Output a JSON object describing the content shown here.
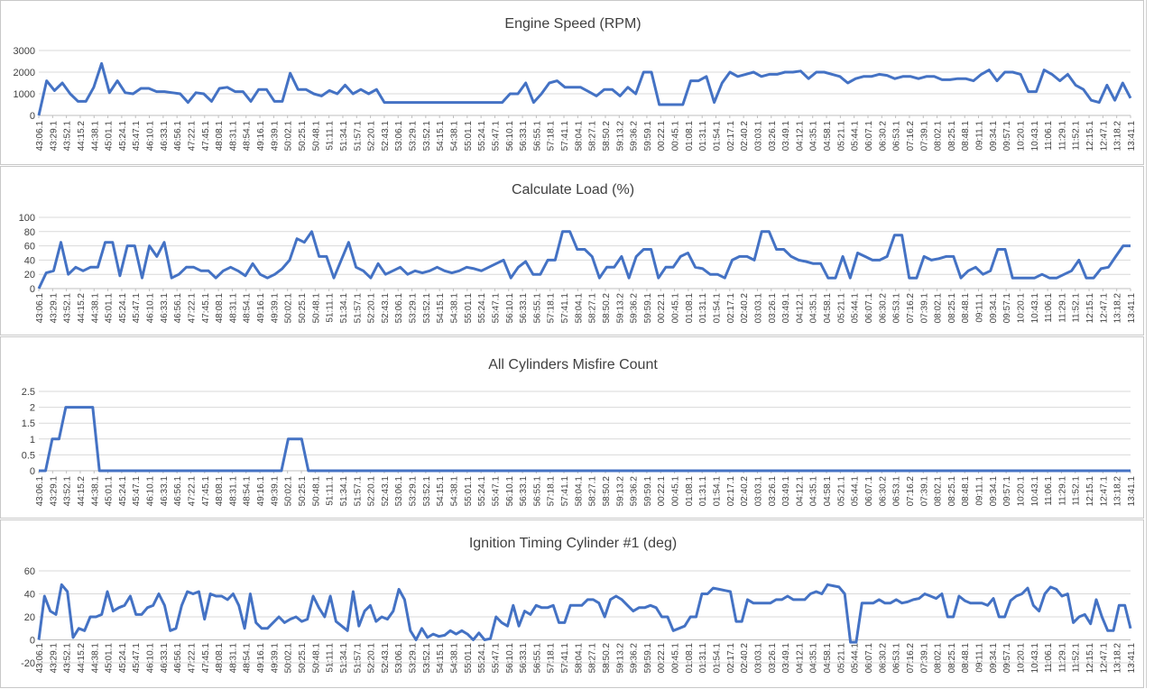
{
  "chart_data": [
    {
      "type": "line",
      "title": "Engine Speed (RPM)",
      "ylim": [
        0,
        3000
      ],
      "yticks": [
        "0",
        "1000",
        "2000",
        "3000"
      ],
      "grid": true,
      "color": "#4472c4",
      "x_labels": [
        "43:06.1",
        "43:29.1",
        "43:52.1",
        "44:15.2",
        "44:38.1",
        "45:01.1",
        "45:24.1",
        "45:47.1",
        "46:10.1",
        "46:33.1",
        "46:56.1",
        "47:22.1",
        "47:45.1",
        "48:08.1",
        "48:31.1",
        "48:54.1",
        "49:16.1",
        "49:39.1",
        "50:02.1",
        "50:25.1",
        "50:48.1",
        "51:11.1",
        "51:34.1",
        "51:57.1",
        "52:20.1",
        "52:43.1",
        "53:06.1",
        "53:29.1",
        "53:52.1",
        "54:15.1",
        "54:38.1",
        "55:01.1",
        "55:24.1",
        "55:47.1",
        "56:10.1",
        "56:33.1",
        "56:55.1",
        "57:18.1",
        "57:41.1",
        "58:04.1",
        "58:27.1",
        "58:50.2",
        "59:13.2",
        "59:36.2",
        "59:59.1",
        "00:22.1",
        "00:45.1",
        "01:08.1",
        "01:31.1",
        "01:54.1",
        "02:17.1",
        "02:40.2",
        "03:03.1",
        "03:26.1",
        "03:49.1",
        "04:12.1",
        "04:35.1",
        "04:58.1",
        "05:21.1",
        "05:44.1",
        "06:07.1",
        "06:30.2",
        "06:53.1",
        "07:16.2",
        "07:39.1",
        "08:02.1",
        "08:25.1",
        "08:48.1",
        "09:11.1",
        "09:34.1",
        "09:57.1",
        "10:20.1",
        "10:43.1",
        "11:06.1",
        "11:29.1",
        "11:52.1",
        "12:15.1",
        "12:47.1",
        "13:18.2",
        "13:41.1"
      ],
      "values": [
        0,
        1600,
        1150,
        1500,
        1000,
        650,
        650,
        1300,
        2400,
        1050,
        1600,
        1050,
        1000,
        1250,
        1250,
        1100,
        1100,
        1050,
        1000,
        600,
        1050,
        1000,
        650,
        1250,
        1300,
        1100,
        1100,
        650,
        1200,
        1200,
        650,
        650,
        1950,
        1200,
        1200,
        1000,
        900,
        1150,
        1000,
        1400,
        1000,
        1200,
        1000,
        1200,
        600,
        600,
        600,
        600,
        600,
        600,
        600,
        600,
        600,
        600,
        600,
        600,
        600,
        600,
        600,
        600,
        1000,
        1000,
        1500,
        600,
        1000,
        1500,
        1600,
        1300,
        1300,
        1300,
        1100,
        900,
        1200,
        1200,
        900,
        1300,
        1000,
        2000,
        2000,
        500,
        500,
        500,
        500,
        1600,
        1600,
        1800,
        600,
        1500,
        2000,
        1800,
        1900,
        2000,
        1800,
        1900,
        1900,
        2000,
        2000,
        2050,
        1700,
        2000,
        2000,
        1900,
        1800,
        1500,
        1700,
        1800,
        1800,
        1900,
        1850,
        1700,
        1800,
        1800,
        1700,
        1800,
        1800,
        1650,
        1650,
        1700,
        1700,
        1600,
        1900,
        2100,
        1600,
        2000,
        2000,
        1900,
        1100,
        1100,
        2100,
        1900,
        1600,
        1900,
        1400,
        1200,
        700,
        600,
        1400,
        700,
        1500,
        800
      ]
    },
    {
      "type": "line",
      "title": "Calculate Load (%)",
      "ylim": [
        0,
        100
      ],
      "yticks": [
        "0",
        "20",
        "40",
        "60",
        "80",
        "100"
      ],
      "grid": true,
      "color": "#4472c4",
      "x_labels": [
        "43:06.1",
        "43:29.1",
        "43:52.1",
        "44:15.2",
        "44:38.1",
        "45:01.1",
        "45:24.1",
        "45:47.1",
        "46:10.1",
        "46:33.1",
        "46:56.1",
        "47:22.1",
        "47:45.1",
        "48:08.1",
        "48:31.1",
        "48:54.1",
        "49:16.1",
        "49:39.1",
        "50:02.1",
        "50:25.1",
        "50:48.1",
        "51:11.1",
        "51:34.1",
        "51:57.1",
        "52:20.1",
        "52:43.1",
        "53:06.1",
        "53:29.1",
        "53:52.1",
        "54:15.1",
        "54:38.1",
        "55:01.1",
        "55:24.1",
        "55:47.1",
        "56:10.1",
        "56:33.1",
        "56:55.1",
        "57:18.1",
        "57:41.1",
        "58:04.1",
        "58:27.1",
        "58:50.2",
        "59:13.2",
        "59:36.2",
        "59:59.1",
        "00:22.1",
        "00:45.1",
        "01:08.1",
        "01:31.1",
        "01:54.1",
        "02:17.1",
        "02:40.2",
        "03:03.1",
        "03:26.1",
        "03:49.1",
        "04:12.1",
        "04:35.1",
        "04:58.1",
        "05:21.1",
        "05:44.1",
        "06:07.1",
        "06:30.2",
        "06:53.1",
        "07:16.2",
        "07:39.1",
        "08:02.1",
        "08:25.1",
        "08:48.1",
        "09:11.1",
        "09:34.1",
        "09:57.1",
        "10:20.1",
        "10:43.1",
        "11:06.1",
        "11:29.1",
        "11:52.1",
        "12:15.1",
        "12:47.1",
        "13:18.2",
        "13:41.1"
      ],
      "values": [
        0,
        22,
        25,
        65,
        20,
        30,
        25,
        30,
        30,
        65,
        65,
        18,
        60,
        60,
        15,
        60,
        45,
        65,
        15,
        20,
        30,
        30,
        25,
        25,
        15,
        25,
        30,
        25,
        18,
        35,
        20,
        15,
        20,
        28,
        40,
        70,
        65,
        80,
        45,
        45,
        15,
        40,
        65,
        30,
        25,
        15,
        35,
        20,
        25,
        30,
        20,
        25,
        22,
        25,
        30,
        25,
        22,
        25,
        30,
        28,
        25,
        30,
        35,
        40,
        15,
        30,
        38,
        20,
        20,
        40,
        40,
        80,
        80,
        55,
        55,
        45,
        15,
        30,
        30,
        45,
        15,
        45,
        55,
        55,
        15,
        30,
        30,
        45,
        50,
        30,
        28,
        20,
        20,
        15,
        40,
        45,
        45,
        40,
        80,
        80,
        55,
        55,
        45,
        40,
        38,
        35,
        35,
        15,
        15,
        45,
        15,
        50,
        45,
        40,
        40,
        45,
        75,
        75,
        15,
        15,
        45,
        40,
        42,
        45,
        45,
        15,
        25,
        30,
        20,
        25,
        55,
        55,
        15,
        15,
        15,
        15,
        20,
        15,
        15,
        20,
        25,
        40,
        15,
        15,
        28,
        30,
        45,
        60,
        60
      ]
    },
    {
      "type": "line",
      "title": "All Cylinders Misfire Count",
      "ylim": [
        0,
        2.5
      ],
      "yticks": [
        "0",
        "0.5",
        "1",
        "1.5",
        "2",
        "2.5"
      ],
      "grid": true,
      "color": "#4472c4",
      "x_labels": [
        "43:06.1",
        "43:29.1",
        "43:52.1",
        "44:15.2",
        "44:38.1",
        "45:01.1",
        "45:24.1",
        "45:47.1",
        "46:10.1",
        "46:33.1",
        "46:56.1",
        "47:22.1",
        "47:45.1",
        "48:08.1",
        "48:31.1",
        "48:54.1",
        "49:16.1",
        "49:39.1",
        "50:02.1",
        "50:25.1",
        "50:48.1",
        "51:11.1",
        "51:34.1",
        "51:57.1",
        "52:20.1",
        "52:43.1",
        "53:06.1",
        "53:29.1",
        "53:52.1",
        "54:15.1",
        "54:38.1",
        "55:01.1",
        "55:24.1",
        "55:47.1",
        "56:10.1",
        "56:33.1",
        "56:55.1",
        "57:18.1",
        "57:41.1",
        "58:04.1",
        "58:27.1",
        "58:50.2",
        "59:13.2",
        "59:36.2",
        "59:59.1",
        "00:22.1",
        "00:45.1",
        "01:08.1",
        "01:31.1",
        "01:54.1",
        "02:17.1",
        "02:40.2",
        "03:03.1",
        "03:26.1",
        "03:49.1",
        "04:12.1",
        "04:35.1",
        "04:58.1",
        "05:21.1",
        "05:44.1",
        "06:07.1",
        "06:30.2",
        "06:53.1",
        "07:16.2",
        "07:39.1",
        "08:02.1",
        "08:25.1",
        "08:48.1",
        "09:11.1",
        "09:34.1",
        "09:57.1",
        "10:20.1",
        "10:43.1",
        "11:06.1",
        "11:29.1",
        "11:52.1",
        "12:15.1",
        "12:47.1",
        "13:18.2",
        "13:41.1"
      ],
      "values": [
        0,
        0,
        1,
        1,
        2,
        2,
        2,
        2,
        2,
        0,
        0,
        0,
        0,
        0,
        0,
        0,
        0,
        0,
        0,
        0,
        0,
        0,
        0,
        0,
        0,
        0,
        0,
        0,
        0,
        0,
        0,
        0,
        0,
        0,
        0,
        0,
        0,
        1,
        1,
        1,
        0,
        0,
        0,
        0,
        0,
        0,
        0,
        0,
        0,
        0,
        0,
        0,
        0,
        0,
        0,
        0,
        0,
        0,
        0,
        0,
        0,
        0,
        0,
        0,
        0,
        0,
        0,
        0,
        0,
        0,
        0,
        0,
        0,
        0,
        0,
        0,
        0,
        0,
        0,
        0,
        0,
        0,
        0,
        0,
        0,
        0,
        0,
        0,
        0,
        0,
        0,
        0,
        0,
        0,
        0,
        0,
        0,
        0,
        0,
        0,
        0,
        0,
        0,
        0,
        0,
        0,
        0,
        0,
        0,
        0,
        0,
        0,
        0,
        0,
        0,
        0,
        0,
        0,
        0,
        0,
        0,
        0,
        0,
        0,
        0,
        0,
        0,
        0,
        0,
        0,
        0,
        0,
        0,
        0,
        0,
        0,
        0,
        0,
        0,
        0,
        0,
        0,
        0,
        0,
        0,
        0,
        0,
        0,
        0,
        0,
        0,
        0,
        0,
        0,
        0,
        0,
        0,
        0,
        0,
        0,
        0,
        0,
        0
      ]
    },
    {
      "type": "line",
      "title": "Ignition Timing Cylinder #1 (deg)",
      "ylim": [
        -20,
        60
      ],
      "yticks": [
        "-20",
        "0",
        "20",
        "40",
        "60"
      ],
      "grid": true,
      "color": "#4472c4",
      "x_labels": [
        "43:06.1",
        "43:29.1",
        "43:52.1",
        "44:15.2",
        "44:38.1",
        "45:01.1",
        "45:24.1",
        "45:47.1",
        "46:10.1",
        "46:33.1",
        "46:56.1",
        "47:22.1",
        "47:45.1",
        "48:08.1",
        "48:31.1",
        "48:54.1",
        "49:16.1",
        "49:39.1",
        "50:02.1",
        "50:25.1",
        "50:48.1",
        "51:11.1",
        "51:34.1",
        "51:57.1",
        "52:20.1",
        "52:43.1",
        "53:06.1",
        "53:29.1",
        "53:52.1",
        "54:15.1",
        "54:38.1",
        "55:01.1",
        "55:24.1",
        "55:47.1",
        "56:10.1",
        "56:33.1",
        "56:55.1",
        "57:18.1",
        "57:41.1",
        "58:04.1",
        "58:27.1",
        "58:50.2",
        "59:13.2",
        "59:36.2",
        "59:59.1",
        "00:22.1",
        "00:45.1",
        "01:08.1",
        "01:31.1",
        "01:54.1",
        "02:17.1",
        "02:40.2",
        "03:03.1",
        "03:26.1",
        "03:49.1",
        "04:12.1",
        "04:35.1",
        "04:58.1",
        "05:21.1",
        "05:44.1",
        "06:07.1",
        "06:30.2",
        "06:53.1",
        "07:16.2",
        "07:39.1",
        "08:02.1",
        "08:25.1",
        "08:48.1",
        "09:11.1",
        "09:34.1",
        "09:57.1",
        "10:20.1",
        "10:43.1",
        "11:06.1",
        "11:29.1",
        "11:52.1",
        "12:15.1",
        "12:47.1",
        "13:18.2",
        "13:41.1"
      ],
      "values": [
        0,
        38,
        25,
        22,
        48,
        42,
        2,
        10,
        8,
        20,
        20,
        22,
        42,
        25,
        28,
        30,
        38,
        22,
        22,
        28,
        30,
        40,
        30,
        8,
        10,
        30,
        42,
        40,
        42,
        18,
        40,
        38,
        38,
        35,
        40,
        30,
        10,
        40,
        15,
        10,
        10,
        15,
        20,
        15,
        18,
        20,
        16,
        18,
        38,
        28,
        20,
        38,
        16,
        12,
        8,
        42,
        12,
        25,
        30,
        16,
        20,
        18,
        25,
        44,
        35,
        8,
        0,
        10,
        2,
        5,
        3,
        4,
        8,
        5,
        8,
        5,
        0,
        6,
        0,
        1,
        20,
        15,
        12,
        30,
        12,
        25,
        22,
        30,
        28,
        28,
        30,
        15,
        15,
        30,
        30,
        30,
        35,
        35,
        32,
        20,
        35,
        38,
        35,
        30,
        25,
        28,
        28,
        30,
        28,
        20,
        20,
        8,
        10,
        12,
        20,
        20,
        40,
        40,
        45,
        44,
        43,
        42,
        16,
        16,
        35,
        32,
        32,
        32,
        32,
        35,
        35,
        38,
        35,
        35,
        35,
        40,
        42,
        40,
        48,
        47,
        46,
        40,
        -2,
        -2,
        32,
        32,
        32,
        35,
        32,
        32,
        35,
        32,
        33,
        35,
        36,
        40,
        38,
        36,
        40,
        20,
        20,
        38,
        34,
        32,
        32,
        32,
        30,
        36,
        20,
        20,
        34,
        38,
        40,
        45,
        30,
        25,
        40,
        46,
        44,
        38,
        40,
        15,
        20,
        22,
        14,
        35,
        20,
        8,
        8,
        30,
        30,
        10
      ]
    }
  ]
}
